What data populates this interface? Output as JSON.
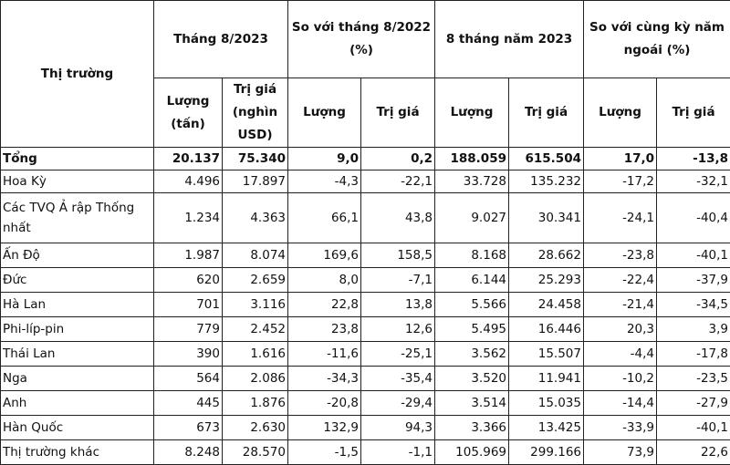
{
  "header": {
    "market": "Thị trường",
    "groups": [
      "Tháng 8/2023",
      "So với tháng 8/2022 (%)",
      "8 tháng năm 2023",
      "So với cùng kỳ năm ngoái (%)"
    ],
    "sub": [
      "Lượng (tấn)",
      "Trị giá (nghìn USD)",
      "Lượng",
      "Trị giá",
      "Lượng",
      "Trị giá",
      "Lượng",
      "Trị giá"
    ]
  },
  "rows": [
    {
      "name": "Tổng",
      "values": [
        "20.137",
        "75.340",
        "9,0",
        "0,2",
        "188.059",
        "615.504",
        "17,0",
        "-13,8"
      ]
    },
    {
      "name": "Hoa Kỳ",
      "values": [
        "4.496",
        "17.897",
        "-4,3",
        "-22,1",
        "33.728",
        "135.232",
        "-17,2",
        "-32,1"
      ]
    },
    {
      "name": "Các TVQ Ả rập Thống nhất",
      "values": [
        "1.234",
        "4.363",
        "66,1",
        "43,8",
        "9.027",
        "30.341",
        "-24,1",
        "-40,4"
      ]
    },
    {
      "name": "Ấn Độ",
      "values": [
        "1.987",
        "8.074",
        "169,6",
        "158,5",
        "8.168",
        "28.662",
        "-23,8",
        "-40,1"
      ]
    },
    {
      "name": "Đức",
      "values": [
        "620",
        "2.659",
        "8,0",
        "-7,1",
        "6.144",
        "25.293",
        "-22,4",
        "-37,9"
      ]
    },
    {
      "name": "Hà Lan",
      "values": [
        "701",
        "3.116",
        "22,8",
        "13,8",
        "5.566",
        "24.458",
        "-21,4",
        "-34,5"
      ]
    },
    {
      "name": "Phi-líp-pin",
      "values": [
        "779",
        "2.452",
        "23,8",
        "12,6",
        "5.495",
        "16.446",
        "20,3",
        "3,9"
      ]
    },
    {
      "name": "Thái Lan",
      "values": [
        "390",
        "1.616",
        "-11,6",
        "-25,1",
        "3.562",
        "15.507",
        "-4,4",
        "-17,8"
      ]
    },
    {
      "name": "Nga",
      "values": [
        "564",
        "2.086",
        "-34,3",
        "-35,4",
        "3.520",
        "11.941",
        "-10,2",
        "-23,5"
      ]
    },
    {
      "name": "Anh",
      "values": [
        "445",
        "1.876",
        "-20,8",
        "-29,4",
        "3.514",
        "15.035",
        "-14,4",
        "-27,9"
      ]
    },
    {
      "name": "Hàn Quốc",
      "values": [
        "673",
        "2.630",
        "132,9",
        "94,3",
        "3.366",
        "13.425",
        "-33,9",
        "-40,1"
      ]
    },
    {
      "name": "Thị trường khác",
      "values": [
        "8.248",
        "28.570",
        "-1,5",
        "-1,1",
        "105.969",
        "299.166",
        "73,9",
        "22,6"
      ]
    }
  ]
}
